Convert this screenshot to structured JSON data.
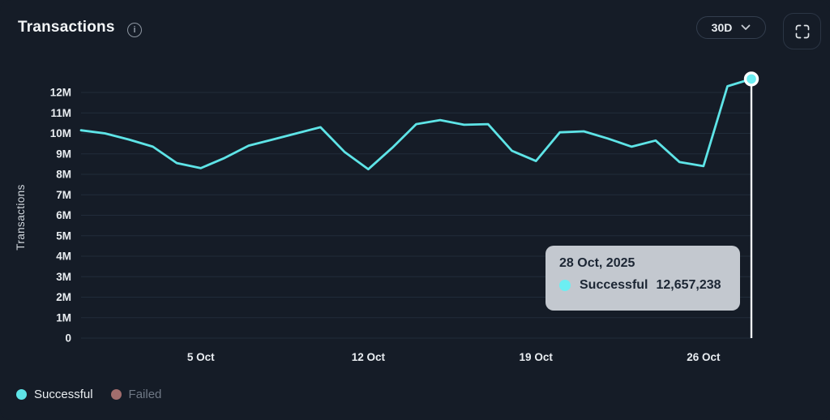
{
  "header": {
    "title": "Transactions",
    "info_icon": "info-circle",
    "range_selector": {
      "selected": "30D",
      "chevron": "chevron-down"
    },
    "fullscreen_button": "fullscreen-expand"
  },
  "tooltip": {
    "date": "28 Oct, 2025",
    "series": "Successful",
    "value": "12,657,238",
    "marker_color": "#6ceef2",
    "background": "#c3c8cf",
    "text_color": "#1c2634"
  },
  "legend": {
    "items": [
      {
        "label": "Successful",
        "color": "#5ee4e7",
        "active": true
      },
      {
        "label": "Failed",
        "color": "#a26d6d",
        "active": false
      }
    ]
  },
  "colors": {
    "background": "#151c27",
    "gridline": "#212c3a",
    "axis_text": "#e9edf1",
    "muted_text": "#6f7885",
    "crosshair": "#eef1f4",
    "accent": "#5ee4e7"
  },
  "chart_data": {
    "type": "line",
    "title": "Transactions",
    "ylabel": "Transactions",
    "xlabel": "",
    "grid": "horizontal",
    "legend_position": "bottom-left",
    "ylim_millions": [
      0,
      12.8
    ],
    "y_ticks": [
      "0",
      "1M",
      "2M",
      "3M",
      "4M",
      "5M",
      "6M",
      "7M",
      "8M",
      "9M",
      "10M",
      "11M",
      "12M"
    ],
    "x_tick_labels": [
      {
        "label": "5 Oct",
        "index": 5
      },
      {
        "label": "12 Oct",
        "index": 12
      },
      {
        "label": "19 Oct",
        "index": 19
      },
      {
        "label": "26 Oct",
        "index": 26
      }
    ],
    "x_dates": [
      "30 Sep",
      "1 Oct",
      "2 Oct",
      "3 Oct",
      "4 Oct",
      "5 Oct",
      "6 Oct",
      "7 Oct",
      "8 Oct",
      "9 Oct",
      "10 Oct",
      "11 Oct",
      "12 Oct",
      "13 Oct",
      "14 Oct",
      "15 Oct",
      "16 Oct",
      "17 Oct",
      "18 Oct",
      "19 Oct",
      "20 Oct",
      "21 Oct",
      "22 Oct",
      "23 Oct",
      "24 Oct",
      "25 Oct",
      "26 Oct",
      "27 Oct",
      "28 Oct"
    ],
    "series": [
      {
        "name": "Successful",
        "color": "#5ee4e7",
        "visible": true,
        "values_millions": [
          10.15,
          10.0,
          9.7,
          9.35,
          8.55,
          8.3,
          8.8,
          9.4,
          9.7,
          10.0,
          10.3,
          9.1,
          8.25,
          9.3,
          10.45,
          10.65,
          10.42,
          10.45,
          9.15,
          8.65,
          10.05,
          10.1,
          9.75,
          9.35,
          9.65,
          8.6,
          8.4,
          12.3,
          12.657238
        ]
      },
      {
        "name": "Failed",
        "color": "#a26d6d",
        "visible": false,
        "values_millions": []
      }
    ],
    "highlight": {
      "index": 28,
      "date": "28 Oct, 2025",
      "series": "Successful",
      "value": 12657238
    }
  }
}
